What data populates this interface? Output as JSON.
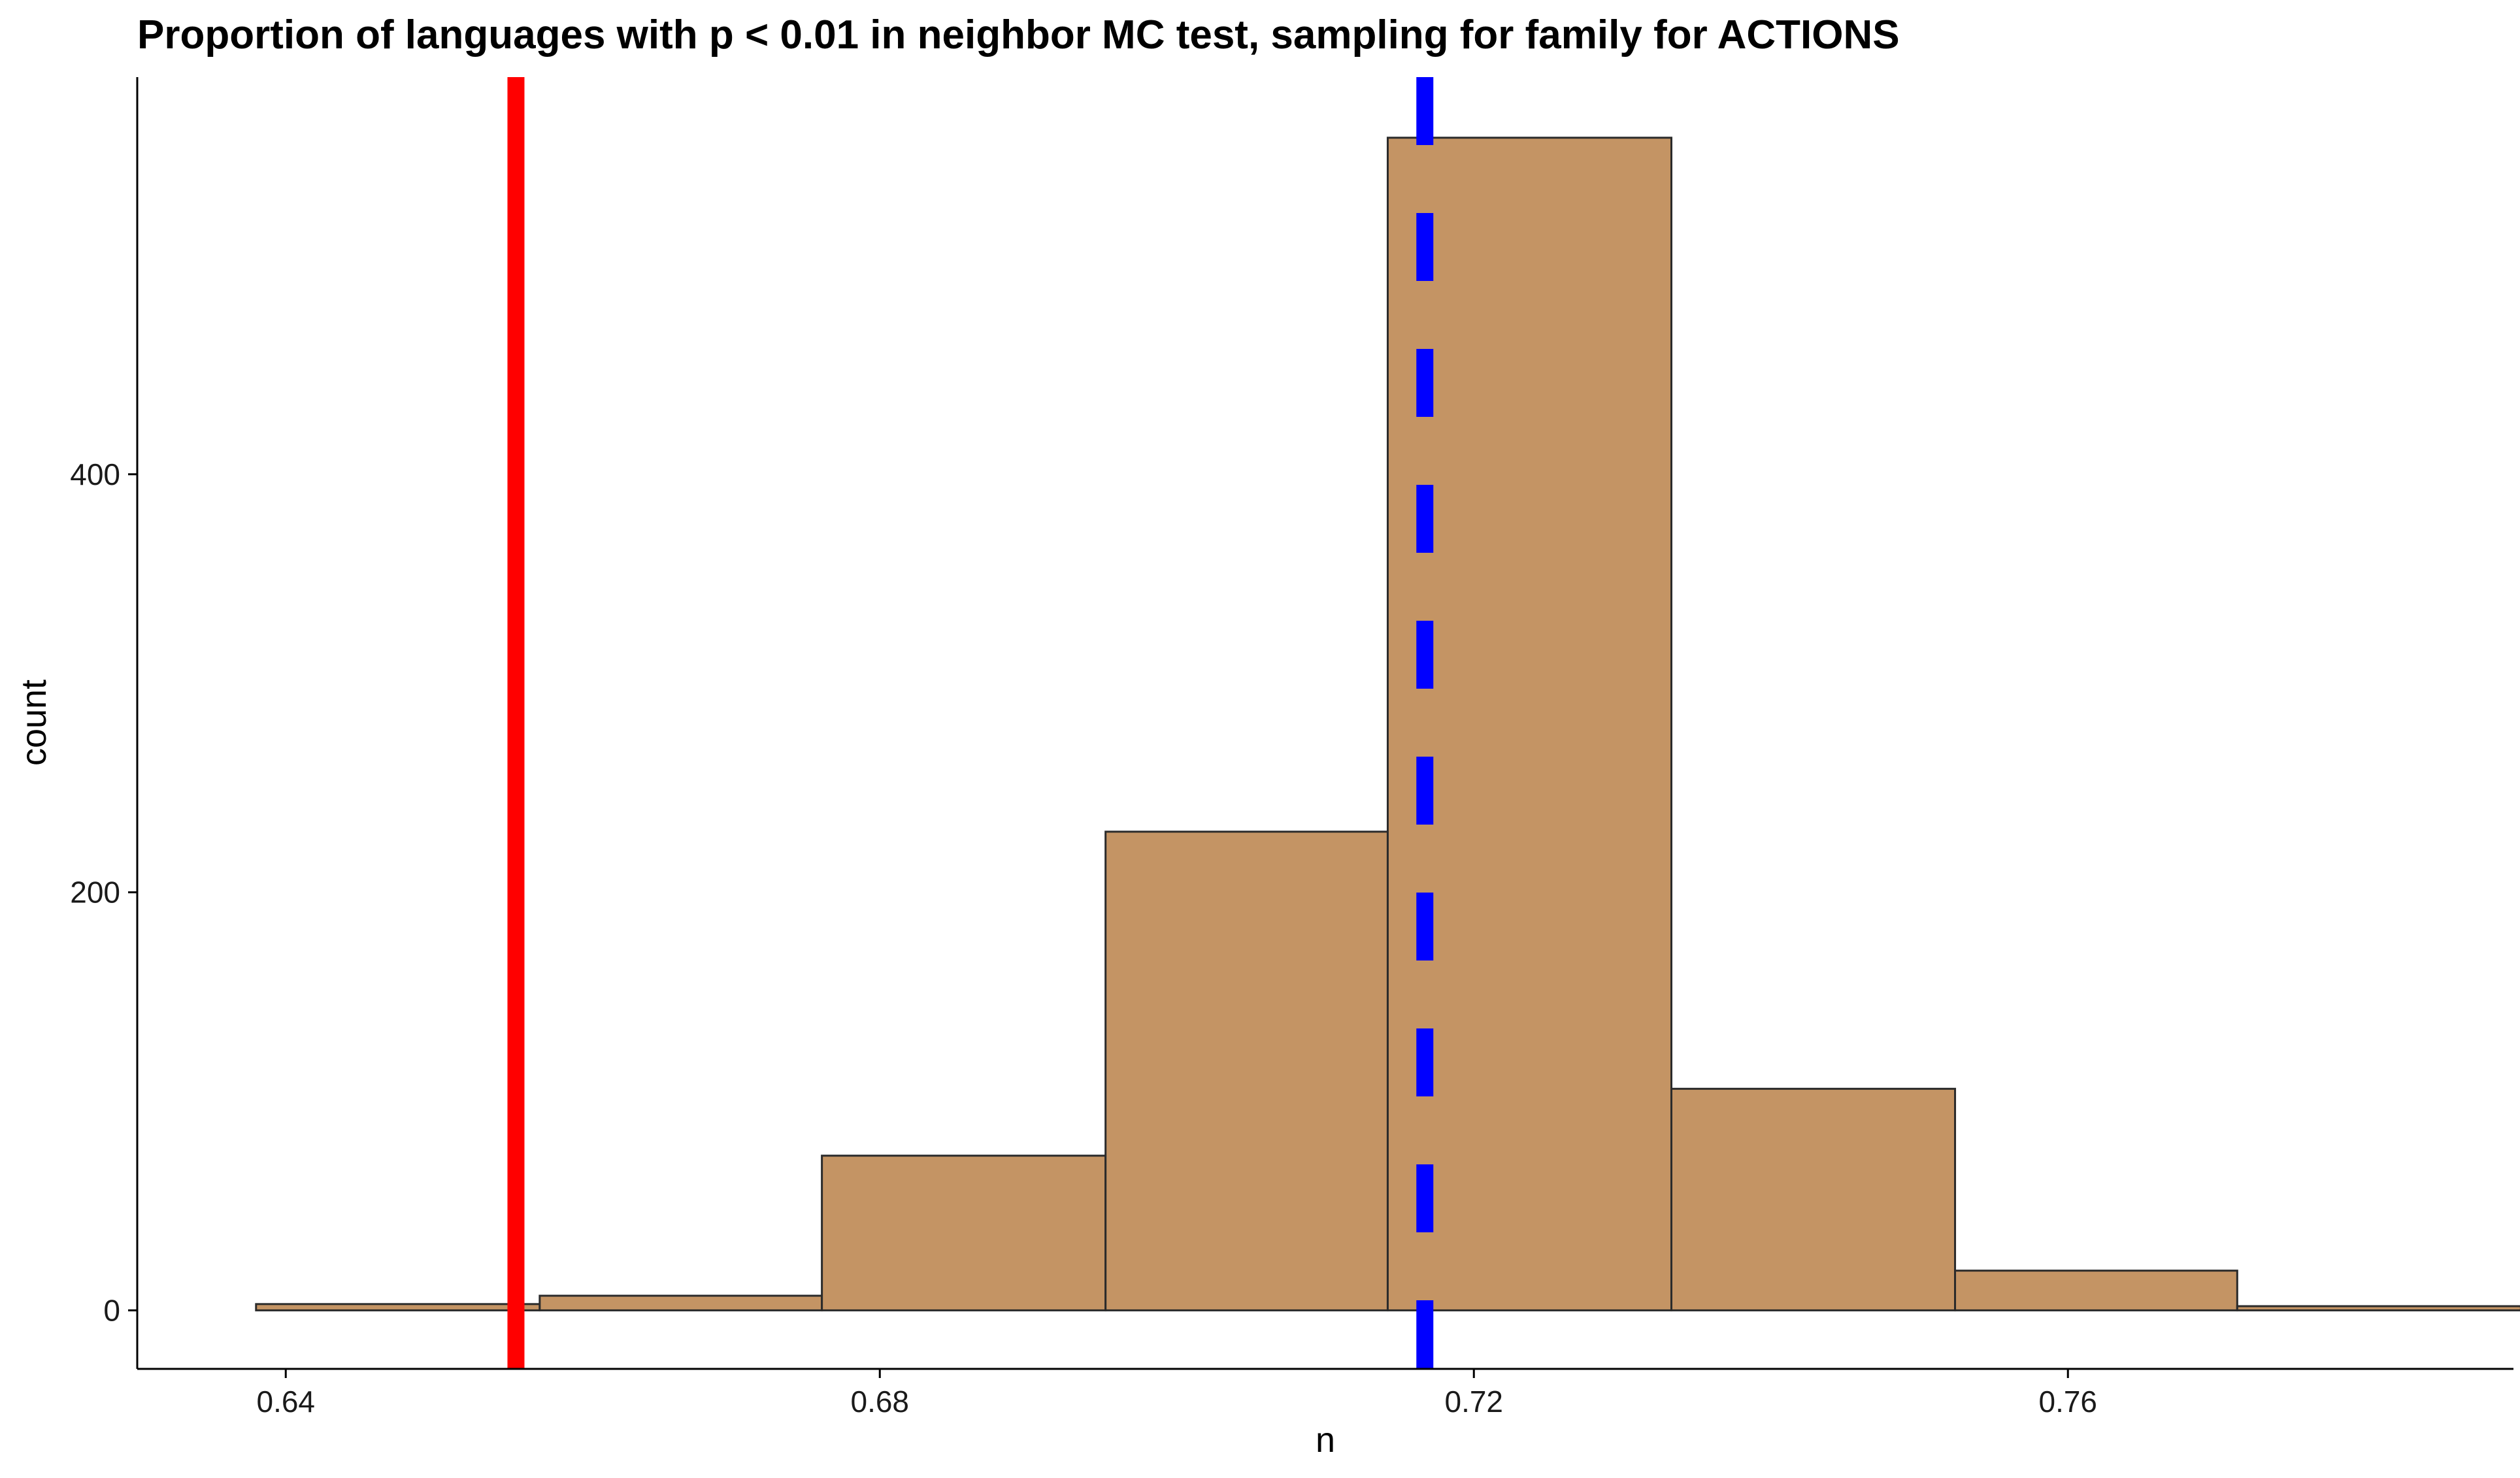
{
  "chart_data": {
    "type": "histogram",
    "title": "Proportion of languages with p < 0.01 in neighbor MC test, sampling for family for ACTIONS",
    "xlabel": "n",
    "ylabel": "count",
    "xlim": [
      0.63,
      0.79
    ],
    "ylim": [
      -28,
      590
    ],
    "x_ticks": [
      0.64,
      0.68,
      0.72,
      0.76
    ],
    "x_tick_labels": [
      "0.64",
      "0.68",
      "0.72",
      "0.76"
    ],
    "y_ticks": [
      0,
      200,
      400
    ],
    "y_tick_labels": [
      "0",
      "200",
      "400"
    ],
    "bins": [
      {
        "x0": 0.638,
        "x1": 0.6571,
        "count": 3
      },
      {
        "x0": 0.6571,
        "x1": 0.6761,
        "count": 7
      },
      {
        "x0": 0.6761,
        "x1": 0.6952,
        "count": 74
      },
      {
        "x0": 0.6952,
        "x1": 0.7142,
        "count": 229
      },
      {
        "x0": 0.7142,
        "x1": 0.7333,
        "count": 561
      },
      {
        "x0": 0.7333,
        "x1": 0.7524,
        "count": 106
      },
      {
        "x0": 0.7524,
        "x1": 0.7714,
        "count": 19
      },
      {
        "x0": 0.7714,
        "x1": 0.7905,
        "count": 2
      }
    ],
    "bar_fill": "#c49464",
    "bar_stroke": "#2b2b2b",
    "reference_lines": [
      {
        "x": 0.6555,
        "color": "#ff0000",
        "style": "solid"
      },
      {
        "x": 0.7167,
        "color": "#0000ff",
        "style": "dashed"
      }
    ],
    "grid": false
  }
}
